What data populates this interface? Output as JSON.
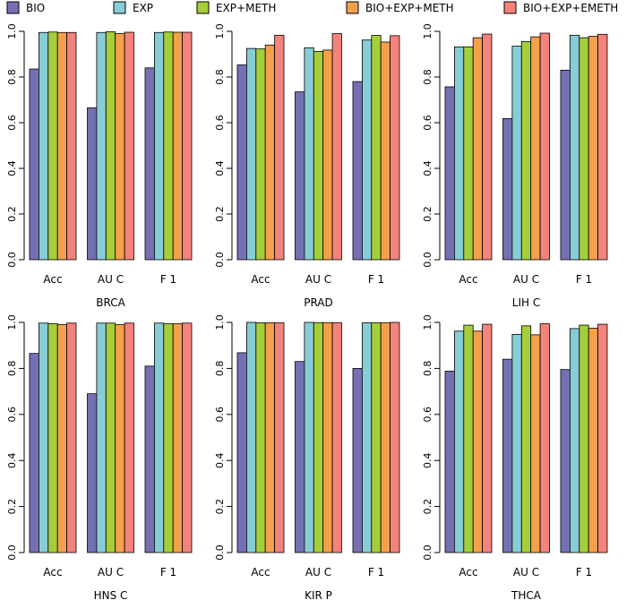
{
  "legend": [
    {
      "name": "BIO",
      "color": "#7570B3"
    },
    {
      "name": "EXP",
      "color": "#88CCD6"
    },
    {
      "name": "EXP+METH",
      "color": "#A6CE39"
    },
    {
      "name": "BIO+EXP+METH",
      "color": "#F5A04A"
    },
    {
      "name": "BIO+EXP+EMETH",
      "color": "#F4837B"
    }
  ],
  "chart_data": [
    {
      "type": "bar",
      "title": "BRCA",
      "categories": [
        "Acc",
        "AU C",
        "F 1"
      ],
      "ylim": [
        0,
        1.0
      ],
      "yticks": [
        "0.0",
        "0.2",
        "0.4",
        "0.6",
        "0.8",
        "1.0"
      ],
      "series": [
        {
          "name": "BIO",
          "values": [
            0.835,
            0.665,
            0.84
          ]
        },
        {
          "name": "EXP",
          "values": [
            0.995,
            0.995,
            0.995
          ]
        },
        {
          "name": "EXP+METH",
          "values": [
            0.997,
            0.998,
            0.997
          ]
        },
        {
          "name": "BIO+EXP+METH",
          "values": [
            0.995,
            0.99,
            0.996
          ]
        },
        {
          "name": "BIO+EXP+EMETH",
          "values": [
            0.995,
            0.996,
            0.996
          ]
        }
      ]
    },
    {
      "type": "bar",
      "title": "PRAD",
      "categories": [
        "Acc",
        "AU C",
        "F 1"
      ],
      "ylim": [
        0,
        1.0
      ],
      "yticks": [
        "0.0",
        "0.2",
        "0.4",
        "0.6",
        "0.8",
        "1.0"
      ],
      "series": [
        {
          "name": "BIO",
          "values": [
            0.853,
            0.735,
            0.78
          ]
        },
        {
          "name": "EXP",
          "values": [
            0.925,
            0.928,
            0.962
          ]
        },
        {
          "name": "EXP+METH",
          "values": [
            0.923,
            0.912,
            0.982
          ]
        },
        {
          "name": "BIO+EXP+METH",
          "values": [
            0.94,
            0.918,
            0.953
          ]
        },
        {
          "name": "BIO+EXP+EMETH",
          "values": [
            0.983,
            0.99,
            0.981
          ]
        }
      ]
    },
    {
      "type": "bar",
      "title": "LIH C",
      "categories": [
        "Acc",
        "AU C",
        "F 1"
      ],
      "ylim": [
        0,
        1.0
      ],
      "yticks": [
        "0.0",
        "0.2",
        "0.4",
        "0.6",
        "0.8",
        "1.0"
      ],
      "series": [
        {
          "name": "BIO",
          "values": [
            0.757,
            0.618,
            0.83
          ]
        },
        {
          "name": "EXP",
          "values": [
            0.932,
            0.935,
            0.983
          ]
        },
        {
          "name": "EXP+METH",
          "values": [
            0.932,
            0.955,
            0.972
          ]
        },
        {
          "name": "BIO+EXP+METH",
          "values": [
            0.972,
            0.976,
            0.978
          ]
        },
        {
          "name": "BIO+EXP+EMETH",
          "values": [
            0.988,
            0.992,
            0.987
          ]
        }
      ]
    },
    {
      "type": "bar",
      "title": "HNS C",
      "categories": [
        "Acc",
        "AU C",
        "F 1"
      ],
      "ylim": [
        0,
        1.0
      ],
      "yticks": [
        "0.0",
        "0.2",
        "0.4",
        "0.6",
        "0.8",
        "1.0"
      ],
      "series": [
        {
          "name": "BIO",
          "values": [
            0.865,
            0.69,
            0.81
          ]
        },
        {
          "name": "EXP",
          "values": [
            0.997,
            0.997,
            0.997
          ]
        },
        {
          "name": "EXP+METH",
          "values": [
            0.995,
            0.997,
            0.994
          ]
        },
        {
          "name": "BIO+EXP+METH",
          "values": [
            0.991,
            0.99,
            0.994
          ]
        },
        {
          "name": "BIO+EXP+EMETH",
          "values": [
            0.997,
            0.997,
            0.997
          ]
        }
      ]
    },
    {
      "type": "bar",
      "title": "KIR P",
      "categories": [
        "Acc",
        "AU C",
        "F 1"
      ],
      "ylim": [
        0,
        1.0
      ],
      "yticks": [
        "0.0",
        "0.2",
        "0.4",
        "0.6",
        "0.8",
        "1.0"
      ],
      "series": [
        {
          "name": "BIO",
          "values": [
            0.868,
            0.83,
            0.8
          ]
        },
        {
          "name": "EXP",
          "values": [
            1.0,
            1.0,
            0.998
          ]
        },
        {
          "name": "EXP+METH",
          "values": [
            0.998,
            0.999,
            0.998
          ]
        },
        {
          "name": "BIO+EXP+METH",
          "values": [
            0.998,
            0.999,
            0.998
          ]
        },
        {
          "name": "BIO+EXP+EMETH",
          "values": [
            0.998,
            0.999,
            1.0
          ]
        }
      ]
    },
    {
      "type": "bar",
      "title": "THCA",
      "categories": [
        "Acc",
        "AU C",
        "F 1"
      ],
      "ylim": [
        0,
        1.0
      ],
      "yticks": [
        "0.0",
        "0.2",
        "0.4",
        "0.6",
        "0.8",
        "1.0"
      ],
      "series": [
        {
          "name": "BIO",
          "values": [
            0.788,
            0.84,
            0.795
          ]
        },
        {
          "name": "EXP",
          "values": [
            0.962,
            0.948,
            0.973
          ]
        },
        {
          "name": "EXP+METH",
          "values": [
            0.988,
            0.985,
            0.988
          ]
        },
        {
          "name": "BIO+EXP+METH",
          "values": [
            0.962,
            0.946,
            0.975
          ]
        },
        {
          "name": "BIO+EXP+EMETH",
          "values": [
            0.992,
            0.994,
            0.992
          ]
        }
      ]
    }
  ]
}
